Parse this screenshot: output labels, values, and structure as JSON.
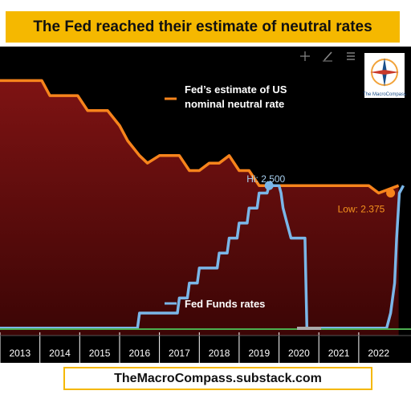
{
  "header": {
    "title": "The Fed reached their estimate of neutral rates"
  },
  "toolbar": {
    "icons": [
      "crosshair-icon",
      "draw-pen-icon",
      "menu-lines-icon"
    ]
  },
  "logo": {
    "label": "The MacroCompass"
  },
  "footer": {
    "source": "TheMacroCompass.substack.com"
  },
  "chart_data": {
    "type": "line",
    "title": "The Fed reached their estimate of neutral rates",
    "x_tick_labels": [
      "2013",
      "2014",
      "2015",
      "2016",
      "2017",
      "2018",
      "2019",
      "2020",
      "2021",
      "2022"
    ],
    "x_range": [
      2012.5,
      2022.65
    ],
    "y_range": [
      0,
      4.55
    ],
    "legend": "inline",
    "grid": false,
    "series": [
      {
        "name": "Fed's estimate of US nominal neutral rate",
        "label_lines": [
          "Fed’s estimate of US",
          "nominal neutral rate"
        ],
        "color": "#f7841c",
        "fill": "dark-red",
        "points": [
          [
            2012.5,
            4.25
          ],
          [
            2013.55,
            4.25
          ],
          [
            2013.75,
            4.0
          ],
          [
            2014.45,
            4.0
          ],
          [
            2014.7,
            3.75
          ],
          [
            2015.2,
            3.75
          ],
          [
            2015.5,
            3.5
          ],
          [
            2015.7,
            3.25
          ],
          [
            2016.0,
            3.0
          ],
          [
            2016.2,
            2.875
          ],
          [
            2016.5,
            3.0
          ],
          [
            2016.75,
            3.0
          ],
          [
            2017.0,
            3.0
          ],
          [
            2017.25,
            2.75
          ],
          [
            2017.5,
            2.75
          ],
          [
            2017.75,
            2.875
          ],
          [
            2018.0,
            2.875
          ],
          [
            2018.25,
            3.0
          ],
          [
            2018.5,
            2.75
          ],
          [
            2018.75,
            2.75
          ],
          [
            2019.0,
            2.5
          ],
          [
            2021.75,
            2.5
          ],
          [
            2022.0,
            2.375
          ],
          [
            2022.5,
            2.5
          ]
        ],
        "annotation": {
          "text": "Low: 2.375",
          "x": 2022.3,
          "y": 2.375
        }
      },
      {
        "name": "Fed Funds rates",
        "label_lines": [
          "Fed Funds rates"
        ],
        "color": "#7ab6e8",
        "points": [
          [
            2012.5,
            0.125
          ],
          [
            2015.95,
            0.125
          ],
          [
            2016.0,
            0.375
          ],
          [
            2016.95,
            0.375
          ],
          [
            2017.0,
            0.625
          ],
          [
            2017.2,
            0.625
          ],
          [
            2017.25,
            0.875
          ],
          [
            2017.45,
            0.875
          ],
          [
            2017.5,
            1.125
          ],
          [
            2017.95,
            1.125
          ],
          [
            2018.0,
            1.375
          ],
          [
            2018.2,
            1.375
          ],
          [
            2018.25,
            1.625
          ],
          [
            2018.45,
            1.625
          ],
          [
            2018.5,
            1.875
          ],
          [
            2018.7,
            1.875
          ],
          [
            2018.75,
            2.125
          ],
          [
            2018.95,
            2.125
          ],
          [
            2019.0,
            2.375
          ],
          [
            2019.2,
            2.375
          ],
          [
            2019.25,
            2.5
          ],
          [
            2019.5,
            2.5
          ],
          [
            2019.55,
            2.375
          ],
          [
            2019.6,
            2.125
          ],
          [
            2019.7,
            1.875
          ],
          [
            2019.8,
            1.625
          ],
          [
            2020.15,
            1.625
          ],
          [
            2020.2,
            0.125
          ],
          [
            2022.0,
            0.125
          ],
          [
            2022.2,
            0.125
          ],
          [
            2022.3,
            0.375
          ],
          [
            2022.4,
            0.875
          ],
          [
            2022.45,
            1.625
          ],
          [
            2022.52,
            2.375
          ],
          [
            2022.62,
            2.5
          ]
        ],
        "annotation": {
          "text": "Hi: 2.500",
          "x": 2019.25,
          "y": 2.5
        }
      }
    ]
  }
}
